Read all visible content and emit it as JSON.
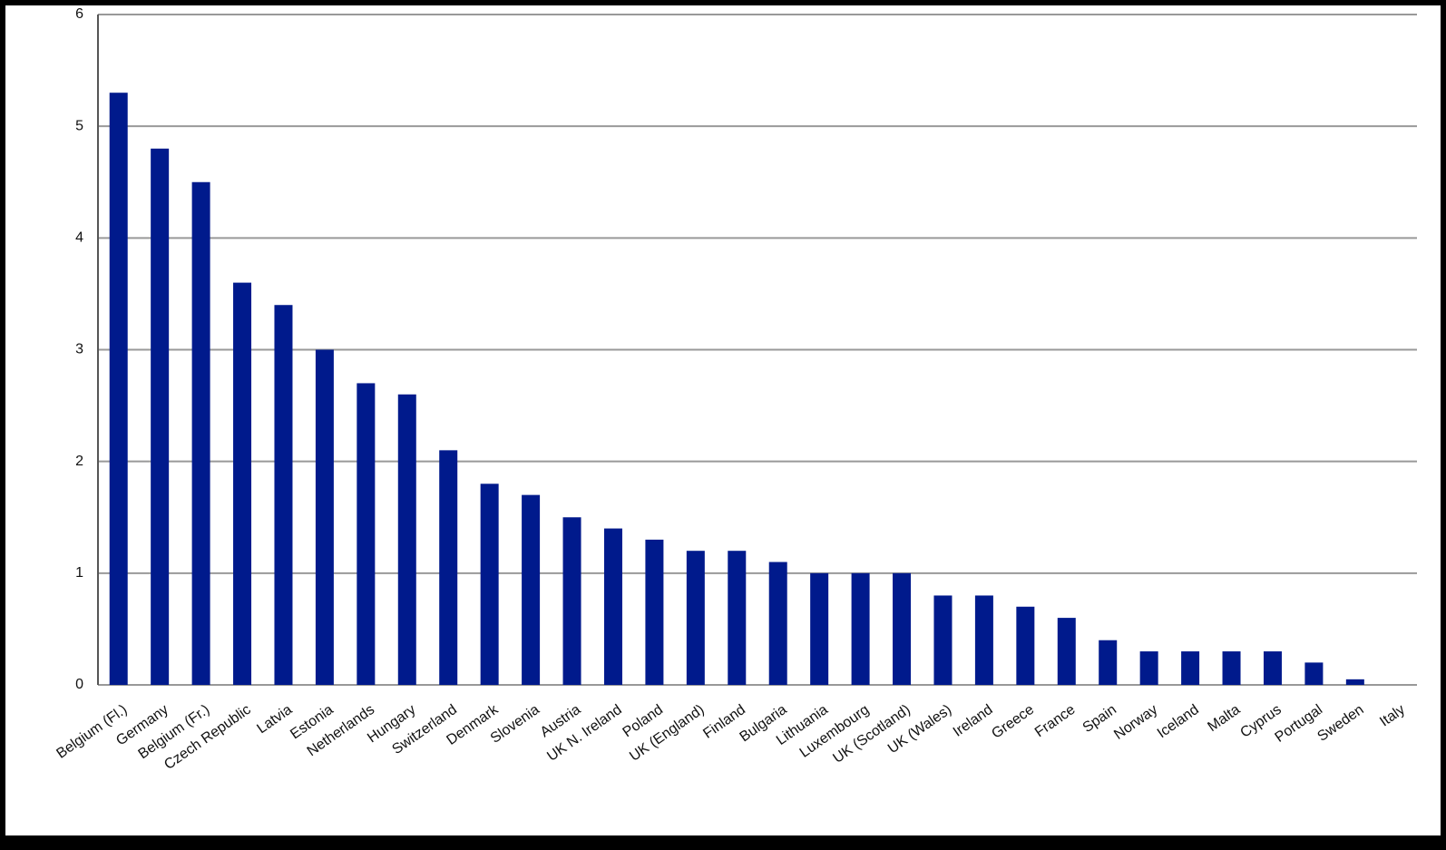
{
  "chart_data": {
    "type": "bar",
    "categories": [
      "Belgium (Fl.)",
      "Germany",
      "Belgium (Fr.)",
      "Czech Republic",
      "Latvia",
      "Estonia",
      "Netherlands",
      "Hungary",
      "Switzerland",
      "Denmark",
      "Slovenia",
      "Austria",
      "UK N. Ireland",
      "Poland",
      "UK (England)",
      "Finland",
      "Bulgaria",
      "Lithuania",
      "Luxembourg",
      "UK (Scotland)",
      "UK  (Wales)",
      "Ireland",
      "Greece",
      "France",
      "Spain",
      "Norway",
      "Iceland",
      "Malta",
      "Cyprus",
      "Portugal",
      "Sweden",
      "Italy"
    ],
    "values": [
      5.3,
      4.8,
      4.5,
      3.6,
      3.4,
      3.0,
      2.7,
      2.6,
      2.1,
      1.8,
      1.7,
      1.5,
      1.4,
      1.3,
      1.2,
      1.2,
      1.1,
      1.0,
      1.0,
      1.0,
      0.8,
      0.8,
      0.7,
      0.6,
      0.4,
      0.3,
      0.3,
      0.3,
      0.3,
      0.2,
      0.05,
      0
    ],
    "color": "#001a8c",
    "ylim": [
      0,
      6
    ],
    "yticks": [
      0,
      1,
      2,
      3,
      4,
      5,
      6
    ],
    "grid": true
  }
}
